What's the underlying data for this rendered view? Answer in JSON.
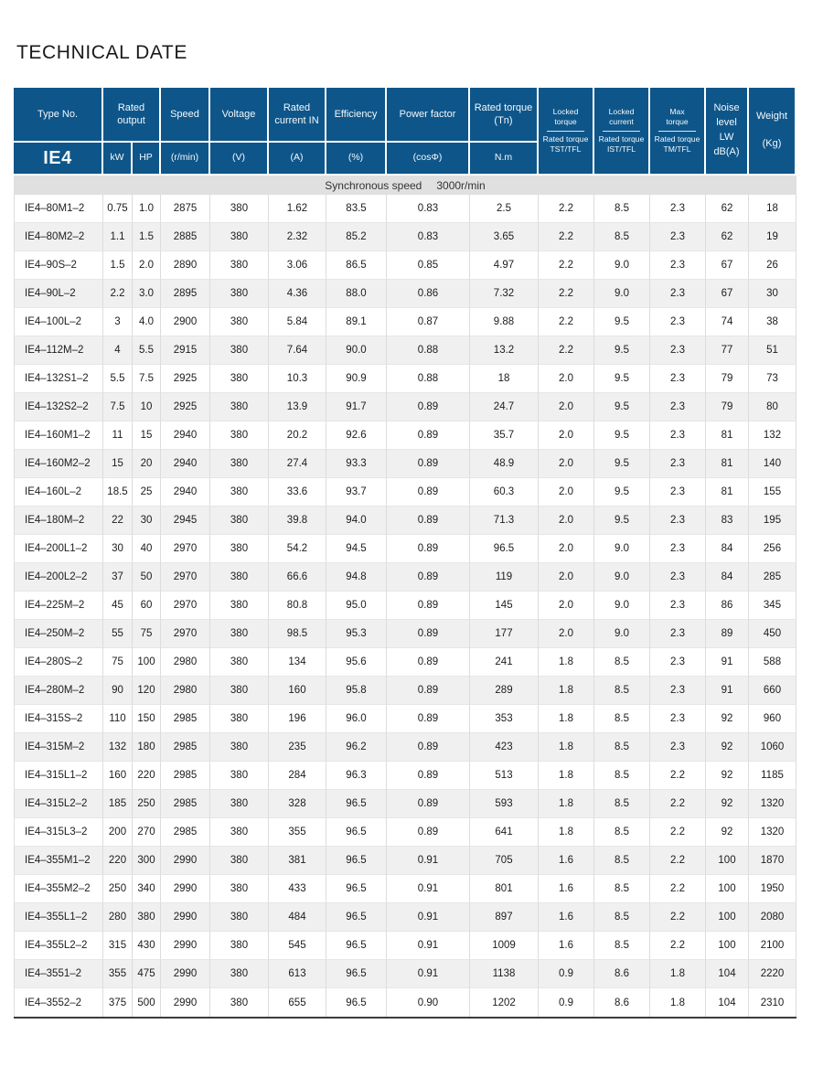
{
  "page_title": "TECHNICAL DATE",
  "colors": {
    "header_bg": "#0e568a",
    "header_text": "#ffffff",
    "band_bg": "#e0e0e0",
    "alt_row_bg": "#f0f0f0",
    "table_bottom_border": "#3c3c3c"
  },
  "table": {
    "header": {
      "type_no": "Type No.",
      "series": "IE4",
      "rated_output": "Rated output",
      "kw": "kW",
      "hp": "HP",
      "speed": "Speed",
      "speed_unit": "(r/min)",
      "voltage": "Voltage",
      "voltage_unit": "(V)",
      "rated_current": "Rated current IN",
      "rated_current_unit": "(A)",
      "efficiency": "Efficiency",
      "efficiency_unit": "(%)",
      "power_factor": "Power factor",
      "power_factor_unit": "(cosΦ)",
      "rated_torque": "Rated torque (Tn)",
      "rated_torque_unit": "N.m",
      "ratio_cols": [
        {
          "numerator": "Locked torque",
          "denominator": "Rated torque",
          "label": "TST/TFL"
        },
        {
          "numerator": "Locked current",
          "denominator": "Rated torque",
          "label": "IST/TFL"
        },
        {
          "numerator": "Max torque",
          "denominator": "Rated torque",
          "label": "TM/TFL"
        }
      ],
      "noise": "Noise level LW dB(A)",
      "weight": "Weight",
      "weight_unit": "(Kg)"
    },
    "band": {
      "label": "Synchronous speed",
      "value": "3000r/min"
    },
    "rows": [
      [
        "IE4–80M1–2",
        "0.75",
        "1.0",
        "2875",
        "380",
        "1.62",
        "83.5",
        "0.83",
        "2.5",
        "2.2",
        "8.5",
        "2.3",
        "62",
        "18"
      ],
      [
        "IE4–80M2–2",
        "1.1",
        "1.5",
        "2885",
        "380",
        "2.32",
        "85.2",
        "0.83",
        "3.65",
        "2.2",
        "8.5",
        "2.3",
        "62",
        "19"
      ],
      [
        "IE4–90S–2",
        "1.5",
        "2.0",
        "2890",
        "380",
        "3.06",
        "86.5",
        "0.85",
        "4.97",
        "2.2",
        "9.0",
        "2.3",
        "67",
        "26"
      ],
      [
        "IE4–90L–2",
        "2.2",
        "3.0",
        "2895",
        "380",
        "4.36",
        "88.0",
        "0.86",
        "7.32",
        "2.2",
        "9.0",
        "2.3",
        "67",
        "30"
      ],
      [
        "IE4–100L–2",
        "3",
        "4.0",
        "2900",
        "380",
        "5.84",
        "89.1",
        "0.87",
        "9.88",
        "2.2",
        "9.5",
        "2.3",
        "74",
        "38"
      ],
      [
        "IE4–112M–2",
        "4",
        "5.5",
        "2915",
        "380",
        "7.64",
        "90.0",
        "0.88",
        "13.2",
        "2.2",
        "9.5",
        "2.3",
        "77",
        "51"
      ],
      [
        "IE4–132S1–2",
        "5.5",
        "7.5",
        "2925",
        "380",
        "10.3",
        "90.9",
        "0.88",
        "18",
        "2.0",
        "9.5",
        "2.3",
        "79",
        "73"
      ],
      [
        "IE4–132S2–2",
        "7.5",
        "10",
        "2925",
        "380",
        "13.9",
        "91.7",
        "0.89",
        "24.7",
        "2.0",
        "9.5",
        "2.3",
        "79",
        "80"
      ],
      [
        "IE4–160M1–2",
        "11",
        "15",
        "2940",
        "380",
        "20.2",
        "92.6",
        "0.89",
        "35.7",
        "2.0",
        "9.5",
        "2.3",
        "81",
        "132"
      ],
      [
        "IE4–160M2–2",
        "15",
        "20",
        "2940",
        "380",
        "27.4",
        "93.3",
        "0.89",
        "48.9",
        "2.0",
        "9.5",
        "2.3",
        "81",
        "140"
      ],
      [
        "IE4–160L–2",
        "18.5",
        "25",
        "2940",
        "380",
        "33.6",
        "93.7",
        "0.89",
        "60.3",
        "2.0",
        "9.5",
        "2.3",
        "81",
        "155"
      ],
      [
        "IE4–180M–2",
        "22",
        "30",
        "2945",
        "380",
        "39.8",
        "94.0",
        "0.89",
        "71.3",
        "2.0",
        "9.5",
        "2.3",
        "83",
        "195"
      ],
      [
        "IE4–200L1–2",
        "30",
        "40",
        "2970",
        "380",
        "54.2",
        "94.5",
        "0.89",
        "96.5",
        "2.0",
        "9.0",
        "2.3",
        "84",
        "256"
      ],
      [
        "IE4–200L2–2",
        "37",
        "50",
        "2970",
        "380",
        "66.6",
        "94.8",
        "0.89",
        "119",
        "2.0",
        "9.0",
        "2.3",
        "84",
        "285"
      ],
      [
        "IE4–225M–2",
        "45",
        "60",
        "2970",
        "380",
        "80.8",
        "95.0",
        "0.89",
        "145",
        "2.0",
        "9.0",
        "2.3",
        "86",
        "345"
      ],
      [
        "IE4–250M–2",
        "55",
        "75",
        "2970",
        "380",
        "98.5",
        "95.3",
        "0.89",
        "177",
        "2.0",
        "9.0",
        "2.3",
        "89",
        "450"
      ],
      [
        "IE4–280S–2",
        "75",
        "100",
        "2980",
        "380",
        "134",
        "95.6",
        "0.89",
        "241",
        "1.8",
        "8.5",
        "2.3",
        "91",
        "588"
      ],
      [
        "IE4–280M–2",
        "90",
        "120",
        "2980",
        "380",
        "160",
        "95.8",
        "0.89",
        "289",
        "1.8",
        "8.5",
        "2.3",
        "91",
        "660"
      ],
      [
        "IE4–315S–2",
        "110",
        "150",
        "2985",
        "380",
        "196",
        "96.0",
        "0.89",
        "353",
        "1.8",
        "8.5",
        "2.3",
        "92",
        "960"
      ],
      [
        "IE4–315M–2",
        "132",
        "180",
        "2985",
        "380",
        "235",
        "96.2",
        "0.89",
        "423",
        "1.8",
        "8.5",
        "2.3",
        "92",
        "1060"
      ],
      [
        "IE4–315L1–2",
        "160",
        "220",
        "2985",
        "380",
        "284",
        "96.3",
        "0.89",
        "513",
        "1.8",
        "8.5",
        "2.2",
        "92",
        "1185"
      ],
      [
        "IE4–315L2–2",
        "185",
        "250",
        "2985",
        "380",
        "328",
        "96.5",
        "0.89",
        "593",
        "1.8",
        "8.5",
        "2.2",
        "92",
        "1320"
      ],
      [
        "IE4–315L3–2",
        "200",
        "270",
        "2985",
        "380",
        "355",
        "96.5",
        "0.89",
        "641",
        "1.8",
        "8.5",
        "2.2",
        "92",
        "1320"
      ],
      [
        "IE4–355M1–2",
        "220",
        "300",
        "2990",
        "380",
        "381",
        "96.5",
        "0.91",
        "705",
        "1.6",
        "8.5",
        "2.2",
        "100",
        "1870"
      ],
      [
        "IE4–355M2–2",
        "250",
        "340",
        "2990",
        "380",
        "433",
        "96.5",
        "0.91",
        "801",
        "1.6",
        "8.5",
        "2.2",
        "100",
        "1950"
      ],
      [
        "IE4–355L1–2",
        "280",
        "380",
        "2990",
        "380",
        "484",
        "96.5",
        "0.91",
        "897",
        "1.6",
        "8.5",
        "2.2",
        "100",
        "2080"
      ],
      [
        "IE4–355L2–2",
        "315",
        "430",
        "2990",
        "380",
        "545",
        "96.5",
        "0.91",
        "1009",
        "1.6",
        "8.5",
        "2.2",
        "100",
        "2100"
      ],
      [
        "IE4–3551–2",
        "355",
        "475",
        "2990",
        "380",
        "613",
        "96.5",
        "0.91",
        "1138",
        "0.9",
        "8.6",
        "1.8",
        "104",
        "2220"
      ],
      [
        "IE4–3552–2",
        "375",
        "500",
        "2990",
        "380",
        "655",
        "96.5",
        "0.90",
        "1202",
        "0.9",
        "8.6",
        "1.8",
        "104",
        "2310"
      ]
    ]
  }
}
